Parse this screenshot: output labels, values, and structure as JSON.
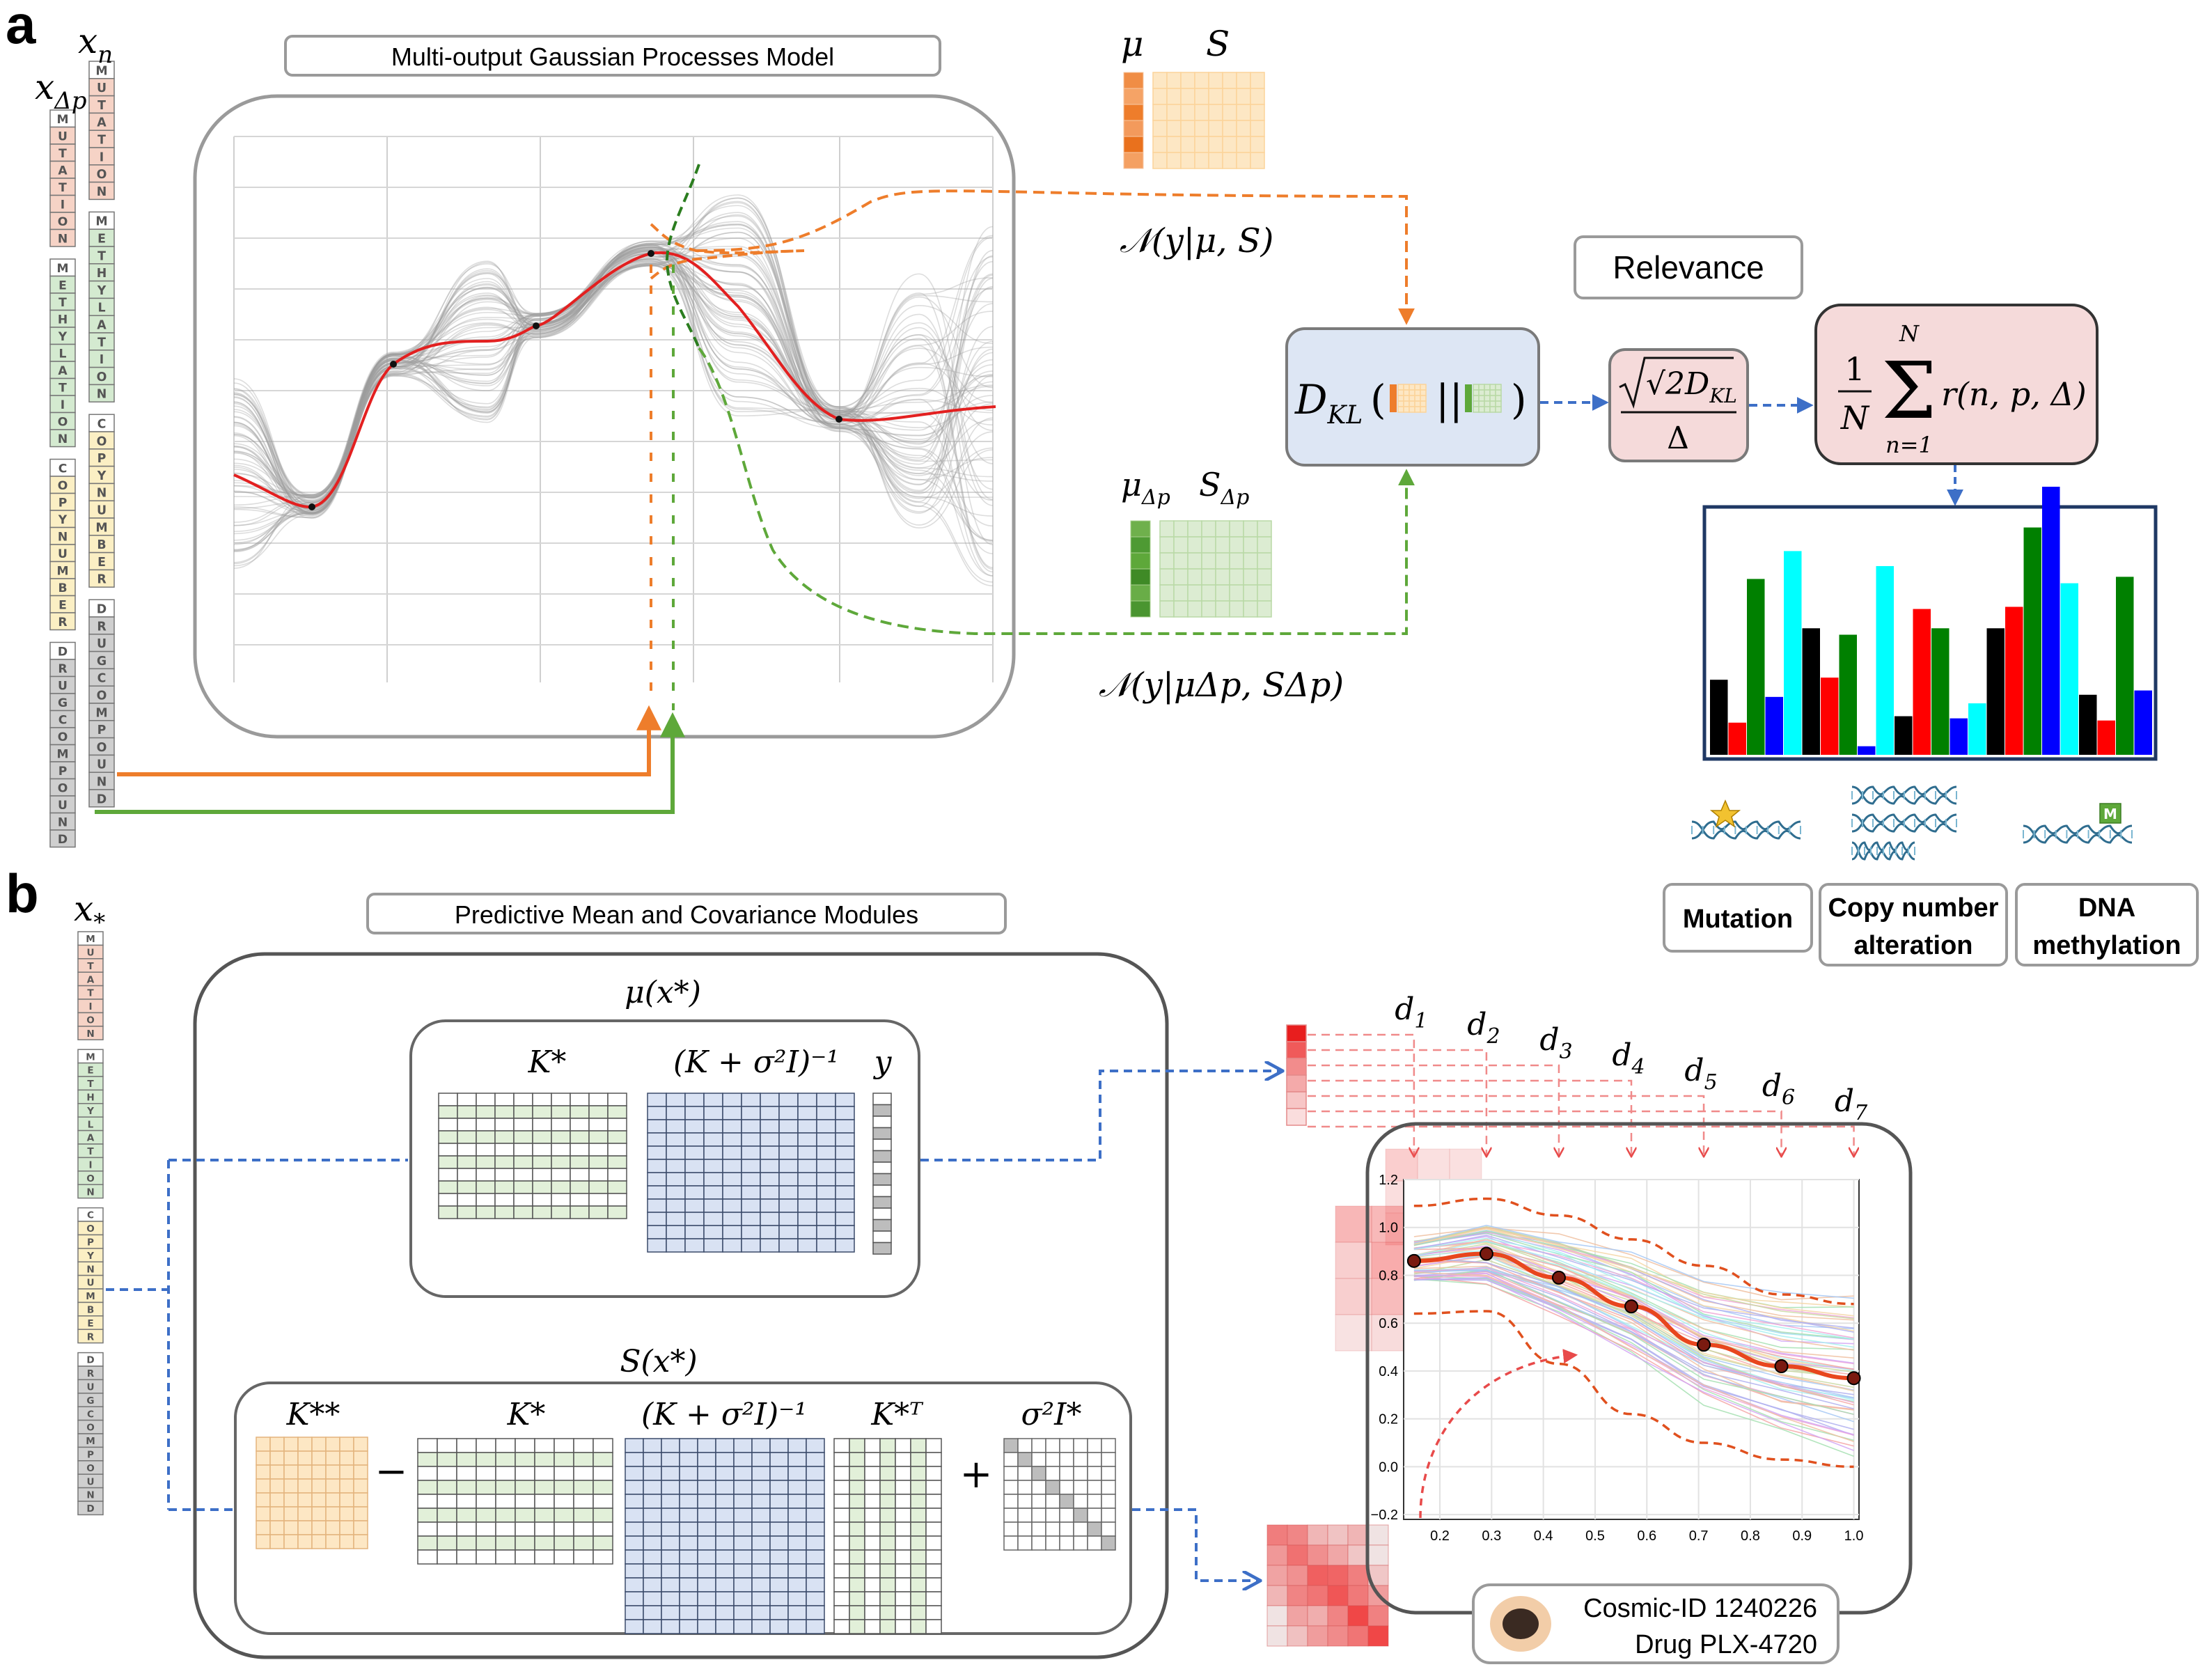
{
  "panels": {
    "a": "a",
    "b": "b"
  },
  "panel_a": {
    "model_title": "Multi-output Gaussian Processes Model",
    "x_n": "x",
    "x_n_sub": "n",
    "x_dp": "x",
    "x_dp_sub": "Δp",
    "mu": "μ",
    "S": "S",
    "mu_dp": "μ",
    "mu_dp_sub": "Δp",
    "S_dp": "S",
    "S_dp_sub": "Δp",
    "normal_1": "𝒩(y|μ, S)",
    "normal_2": "𝒩(y|μΔp, SΔp)",
    "kl_label": "D",
    "kl_sub": "KL",
    "kl_sep": "||",
    "relevance_title": "Relevance",
    "ratio_num": "√2D",
    "ratio_num_sub": "KL",
    "ratio_den": "Δ",
    "sum_one": "1",
    "sum_N": "N",
    "sum_top": "N",
    "sum_bottom": "n=1",
    "sum_expr": "r(n, p, Δ)",
    "sigma": "Σ",
    "legend": {
      "mutation": "Mutation",
      "cna_1": "Copy number",
      "cna_2": "alteration",
      "meth_1": "DNA",
      "meth_2": "methylation"
    }
  },
  "panel_b": {
    "module_title": "Predictive Mean and Covariance Modules",
    "x_star": "x",
    "x_star_sub": "*",
    "mean_title": "μ(x*)",
    "cov_title": "S(x*)",
    "K_star": "K*",
    "inv_term": "(K + σ²I)⁻¹",
    "y": "y",
    "K_starstar": "K**",
    "minus": "−",
    "plus": "+",
    "K_star_T": "K*ᵀ",
    "noise": "σ²I*",
    "d_labels": [
      "d1",
      "d2",
      "d3",
      "d4",
      "d5",
      "d6",
      "d7"
    ],
    "cosmic": "Cosmic-ID 1240226",
    "drug": "Drug  PLX-4720"
  },
  "column_letters": {
    "mutation": [
      "M",
      "U",
      "T",
      "A",
      "T",
      "I",
      "O",
      "N"
    ],
    "methylation": [
      "M",
      "E",
      "T",
      "H",
      "Y",
      "L",
      "A",
      "T",
      "I",
      "O",
      "N"
    ],
    "copy": [
      "C",
      "O",
      "P",
      "Y",
      "N",
      "U",
      "M",
      "B",
      "E",
      "R"
    ],
    "drug": [
      "D",
      "R",
      "U",
      "G",
      "C",
      "O",
      "M",
      "P",
      "O",
      "U",
      "N",
      "D"
    ]
  },
  "colors": {
    "orange": "#ee7d2b",
    "green": "#5ea83a",
    "blue_dash": "#3d6fc7",
    "red": "#e03030",
    "kl_fill": "#dde6f4",
    "rel_fill": "#f5dada",
    "S_fill": "#fde7c4",
    "Sdp_fill": "#dcecd2",
    "Kstar_fill": "#e2f0d9",
    "inv_fill": "#d9e2f3"
  },
  "relevance_chart": {
    "type": "bar",
    "bars": [
      {
        "c": "#000000",
        "h": 0.35
      },
      {
        "c": "#ff0000",
        "h": 0.15
      },
      {
        "c": "#008000",
        "h": 0.82
      },
      {
        "c": "#0000ff",
        "h": 0.27
      },
      {
        "c": "#00ffff",
        "h": 0.95
      },
      {
        "c": "#000000",
        "h": 0.59
      },
      {
        "c": "#ff0000",
        "h": 0.36
      },
      {
        "c": "#008000",
        "h": 0.56
      },
      {
        "c": "#0000ff",
        "h": 0.04
      },
      {
        "c": "#00ffff",
        "h": 0.88
      },
      {
        "c": "#000000",
        "h": 0.18
      },
      {
        "c": "#ff0000",
        "h": 0.68
      },
      {
        "c": "#008000",
        "h": 0.59
      },
      {
        "c": "#0000ff",
        "h": 0.17
      },
      {
        "c": "#00ffff",
        "h": 0.24
      },
      {
        "c": "#000000",
        "h": 0.59
      },
      {
        "c": "#ff0000",
        "h": 0.69
      },
      {
        "c": "#008000",
        "h": 1.06
      },
      {
        "c": "#0000ff",
        "h": 1.25
      },
      {
        "c": "#00ffff",
        "h": 0.8
      },
      {
        "c": "#000000",
        "h": 0.28
      },
      {
        "c": "#ff0000",
        "h": 0.16
      },
      {
        "c": "#008000",
        "h": 0.83
      },
      {
        "c": "#0000ff",
        "h": 0.3
      }
    ]
  },
  "chart_data": {
    "type": "line",
    "x": [
      0.15,
      0.29,
      0.43,
      0.57,
      0.71,
      0.86,
      1.0
    ],
    "y": [
      0.86,
      0.89,
      0.79,
      0.67,
      0.51,
      0.42,
      0.37
    ],
    "xticks": [
      "0.2",
      "0.3",
      "0.4",
      "0.5",
      "0.6",
      "0.7",
      "0.8",
      "0.9",
      "1.0"
    ],
    "yticks": [
      "−0.2",
      "0.0",
      "0.2",
      "0.4",
      "0.6",
      "0.8",
      "1.0",
      "1.2"
    ],
    "xlim": [
      0.13,
      1.01
    ],
    "ylim": [
      -0.22,
      1.2
    ],
    "upper_band": [
      1.09,
      1.12,
      1.05,
      0.95,
      0.84,
      0.72,
      0.68
    ],
    "lower_band": [
      0.64,
      0.65,
      0.43,
      0.22,
      0.1,
      0.03,
      0.0
    ],
    "grid": true
  }
}
